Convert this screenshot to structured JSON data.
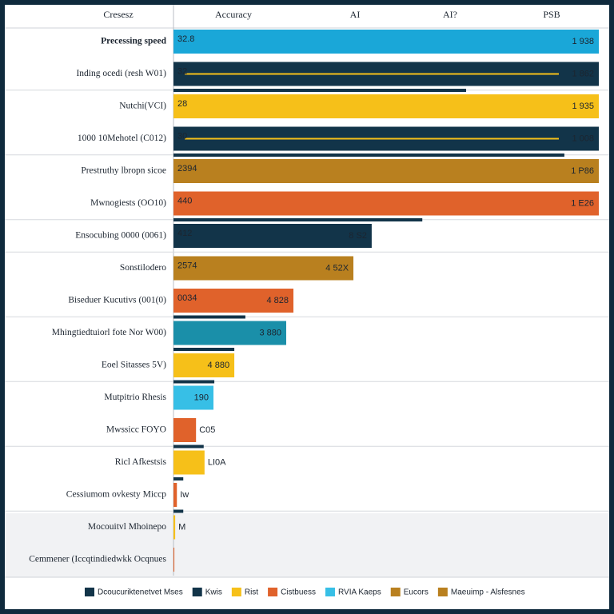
{
  "chart_data": {
    "type": "bar",
    "orientation": "horizontal",
    "header_labels": [
      "Cresesz",
      "Accuracy",
      "AI",
      "AI?",
      "PSB"
    ],
    "categories": [
      "Precessing speed",
      "Inding ocedi (resh W01)",
      "Nutchi(VCI)",
      "1000 10Mehotel (C012)",
      "Prestruthy lbropn sicoe",
      "Mwnogiests (OO10)",
      "Ensocubing 0000 (0061)",
      "Sonstilodero",
      "Biseduer Kucutivs (001(0)",
      "Mhingtiedtuiorl fote Nor W00)",
      "Eoel Sitasses 5V)",
      "Mutpitrio Rhesis",
      "Mwssicc FOYO",
      "Ricl Afkestsis",
      "Cessiumom ovkesty Miccp",
      "Mocouitvl Mhoinepo",
      "Cemmener (Iccqtindiedwkk Ocqnues"
    ],
    "values": [
      100,
      100,
      100,
      100,
      100,
      100,
      46.6,
      42.3,
      28.2,
      26.5,
      14.3,
      9.4,
      5.3,
      7.3,
      0.8,
      0.4,
      0.2
    ],
    "colors": [
      "#1aa7d8",
      "#123449",
      "#f6c019",
      "#123449",
      "#b9801f",
      "#e0622b",
      "#123449",
      "#b9801f",
      "#e0622b",
      "#1a8fa9",
      "#f6c019",
      "#37bfe6",
      "#e0622b",
      "#f6c019",
      "#e0622b",
      "#f6c019",
      "#e0622b"
    ],
    "left_labels": [
      "32.8",
      "32",
      "28",
      "30",
      "2394",
      "440",
      "412",
      "2574",
      "0034",
      null,
      null,
      null,
      null,
      null,
      null,
      null,
      null
    ],
    "right_labels": [
      "1 938",
      "1 862",
      "1 935",
      "1 008",
      "1 P86",
      "1 E26",
      "8 S2",
      "4 52X",
      "4 828",
      "3 880",
      "4 880",
      "190",
      "C05",
      "LI0A",
      "Iw",
      "M",
      null
    ],
    "marker_values": [
      null,
      null,
      68.8,
      null,
      91.9,
      null,
      58.5,
      null,
      null,
      16.9,
      14.3,
      9.6,
      null,
      7.1,
      2.3,
      2.3,
      null
    ],
    "marker_color": "#123449",
    "xlim": [
      0,
      100
    ],
    "legend": [
      {
        "name": "Dcoucuriktenetvet Mses",
        "color": "#123449"
      },
      {
        "name": "Kwis",
        "color": "#123449"
      },
      {
        "name": "Rist",
        "color": "#f6c019"
      },
      {
        "name": "Cistbuess",
        "color": "#e0622b"
      },
      {
        "name": "RVIA Kaeps",
        "color": "#37bfe6"
      },
      {
        "name": "Eucors",
        "color": "#b9801f"
      },
      {
        "name": "Maeuimp - Alsfesnes",
        "color": "#b9801f"
      }
    ]
  }
}
